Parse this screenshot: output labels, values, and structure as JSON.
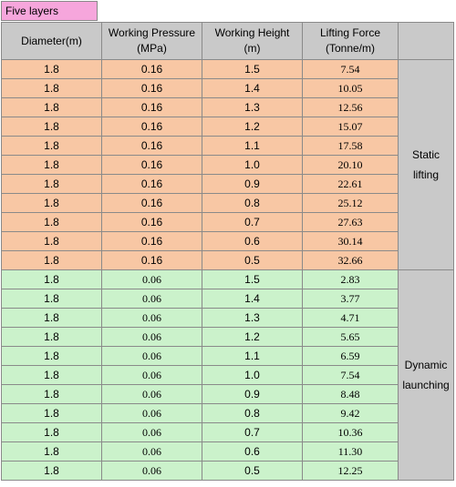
{
  "caption": "Five layers",
  "headers": {
    "diameter": "Diameter(m)",
    "pressure_l1": "Working Pressure",
    "pressure_l2": "(MPa)",
    "height_l1": "Working Height",
    "height_l2": "(m)",
    "force_l1": "Lifting Force",
    "force_l2": "(Tonne/m)"
  },
  "groups": {
    "static_l1": "Static",
    "static_l2": "lifting",
    "dynamic_l1": "Dynamic",
    "dynamic_l2": "launching"
  },
  "static_rows": [
    [
      "1.8",
      "0.16",
      "1.5",
      "7.54"
    ],
    [
      "1.8",
      "0.16",
      "1.4",
      "10.05"
    ],
    [
      "1.8",
      "0.16",
      "1.3",
      "12.56"
    ],
    [
      "1.8",
      "0.16",
      "1.2",
      "15.07"
    ],
    [
      "1.8",
      "0.16",
      "1.1",
      "17.58"
    ],
    [
      "1.8",
      "0.16",
      "1.0",
      "20.10"
    ],
    [
      "1.8",
      "0.16",
      "0.9",
      "22.61"
    ],
    [
      "1.8",
      "0.16",
      "0.8",
      "25.12"
    ],
    [
      "1.8",
      "0.16",
      "0.7",
      "27.63"
    ],
    [
      "1.8",
      "0.16",
      "0.6",
      "30.14"
    ],
    [
      "1.8",
      "0.16",
      "0.5",
      "32.66"
    ]
  ],
  "dynamic_rows": [
    [
      "1.8",
      "0.06",
      "1.5",
      "2.83"
    ],
    [
      "1.8",
      "0.06",
      "1.4",
      "3.77"
    ],
    [
      "1.8",
      "0.06",
      "1.3",
      "4.71"
    ],
    [
      "1.8",
      "0.06",
      "1.2",
      "5.65"
    ],
    [
      "1.8",
      "0.06",
      "1.1",
      "6.59"
    ],
    [
      "1.8",
      "0.06",
      "1.0",
      "7.54"
    ],
    [
      "1.8",
      "0.06",
      "0.9",
      "8.48"
    ],
    [
      "1.8",
      "0.06",
      "0.8",
      "9.42"
    ],
    [
      "1.8",
      "0.06",
      "0.7",
      "10.36"
    ],
    [
      "1.8",
      "0.06",
      "0.6",
      "11.30"
    ],
    [
      "1.8",
      "0.06",
      "0.5",
      "12.25"
    ]
  ]
}
